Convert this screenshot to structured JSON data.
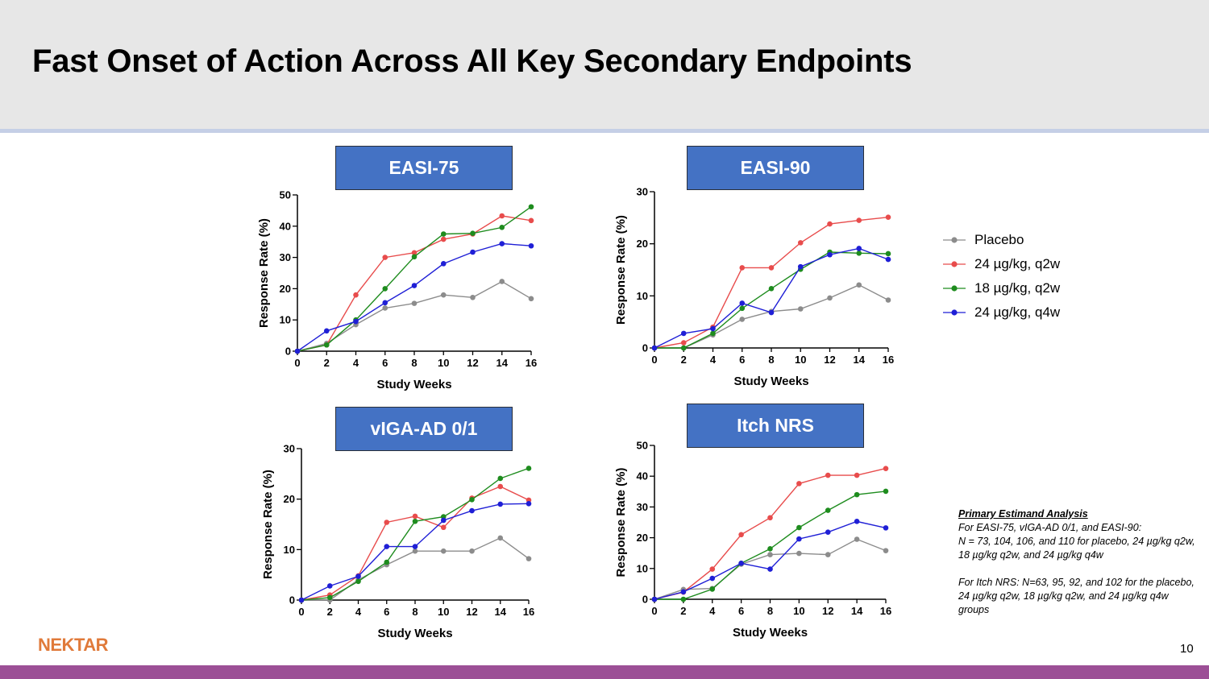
{
  "title": "Fast Onset of Action Across All Key Secondary Endpoints",
  "colors": {
    "placebo": "#8c8c8c",
    "q2w_24": "#e84c4c",
    "q2w_18": "#1e8c1e",
    "q4w_24": "#1f1fd6",
    "label_bg": "#4472c4",
    "footer": "#9c4f96",
    "logo": "#e07a3a"
  },
  "legend": [
    {
      "name": "Placebo",
      "color": "#8c8c8c"
    },
    {
      "name": "24 µg/kg, q2w",
      "color": "#e84c4c"
    },
    {
      "name": "18 µg/kg, q2w",
      "color": "#1e8c1e"
    },
    {
      "name": "24 µg/kg, q4w",
      "color": "#1f1fd6"
    }
  ],
  "chart_data": [
    {
      "type": "line",
      "title": "EASI-75",
      "xlabel": "Study Weeks",
      "ylabel": "Response Rate (%)",
      "xlim": [
        0,
        16
      ],
      "ylim": [
        0,
        50
      ],
      "xticks": [
        0,
        2,
        4,
        6,
        8,
        10,
        12,
        14,
        16
      ],
      "yticks": [
        0,
        10,
        20,
        30,
        40,
        50
      ],
      "x": [
        0,
        2,
        4,
        6,
        8,
        10,
        12,
        14,
        16
      ],
      "series": [
        {
          "name": "Placebo",
          "color": "#8c8c8c",
          "values": [
            0,
            2.5,
            8.5,
            13.8,
            15.3,
            18,
            17.2,
            22.3,
            16.8
          ]
        },
        {
          "name": "24 µg/kg, q2w",
          "color": "#e84c4c",
          "values": [
            0,
            2,
            18,
            30,
            31.5,
            35.8,
            37.5,
            43.3,
            41.8
          ]
        },
        {
          "name": "18 µg/kg, q2w",
          "color": "#1e8c1e",
          "values": [
            0,
            2,
            10,
            20,
            30.2,
            37.5,
            37.7,
            39.6,
            46.2
          ]
        },
        {
          "name": "24 µg/kg, q4w",
          "color": "#1f1fd6",
          "values": [
            0,
            6.5,
            9.5,
            15.5,
            21,
            28,
            31.7,
            34.4,
            33.7
          ]
        }
      ]
    },
    {
      "type": "line",
      "title": "EASI-90",
      "xlabel": "Study Weeks",
      "ylabel": "Response Rate (%)",
      "xlim": [
        0,
        16
      ],
      "ylim": [
        0,
        30
      ],
      "xticks": [
        0,
        2,
        4,
        6,
        8,
        10,
        12,
        14,
        16
      ],
      "yticks": [
        0,
        10,
        20,
        30
      ],
      "x": [
        0,
        2,
        4,
        6,
        8,
        10,
        12,
        14,
        16
      ],
      "series": [
        {
          "name": "Placebo",
          "color": "#8c8c8c",
          "values": [
            0,
            0,
            2.5,
            5.5,
            7,
            7.5,
            9.6,
            12.1,
            9.2
          ]
        },
        {
          "name": "24 µg/kg, q2w",
          "color": "#e84c4c",
          "values": [
            0,
            1,
            4,
            15.4,
            15.4,
            20.2,
            23.8,
            24.5,
            25.1
          ]
        },
        {
          "name": "18 µg/kg, q2w",
          "color": "#1e8c1e",
          "values": [
            0,
            0,
            2.8,
            7.6,
            11.4,
            15.1,
            18.4,
            18.2,
            18.1
          ]
        },
        {
          "name": "24 µg/kg, q4w",
          "color": "#1f1fd6",
          "values": [
            0,
            2.8,
            3.7,
            8.6,
            6.8,
            15.6,
            17.9,
            19.1,
            17
          ]
        }
      ]
    },
    {
      "type": "line",
      "title": "vIGA-AD 0/1",
      "xlabel": "Study Weeks",
      "ylabel": "Response Rate (%)",
      "xlim": [
        0,
        16
      ],
      "ylim": [
        0,
        30
      ],
      "xticks": [
        0,
        2,
        4,
        6,
        8,
        10,
        12,
        14,
        16
      ],
      "yticks": [
        0,
        10,
        20,
        30
      ],
      "x": [
        0,
        2,
        4,
        6,
        8,
        10,
        12,
        14,
        16
      ],
      "series": [
        {
          "name": "Placebo",
          "color": "#8c8c8c",
          "values": [
            0,
            0,
            4,
            7,
            9.7,
            9.7,
            9.7,
            12.3,
            8.2
          ]
        },
        {
          "name": "24 µg/kg, q2w",
          "color": "#e84c4c",
          "values": [
            0,
            1,
            4.8,
            15.4,
            16.6,
            14.4,
            20.2,
            22.5,
            19.8
          ]
        },
        {
          "name": "18 µg/kg, q2w",
          "color": "#1e8c1e",
          "values": [
            0,
            0.5,
            3.7,
            7.5,
            15.6,
            16.5,
            19.9,
            24.1,
            26.1
          ]
        },
        {
          "name": "24 µg/kg, q4w",
          "color": "#1f1fd6",
          "values": [
            0,
            2.8,
            4.7,
            10.6,
            10.6,
            15.8,
            17.7,
            19,
            19.1
          ]
        }
      ]
    },
    {
      "type": "line",
      "title": "Itch NRS",
      "xlabel": "Study Weeks",
      "ylabel": "Response Rate (%)",
      "xlim": [
        0,
        16
      ],
      "ylim": [
        0,
        50
      ],
      "xticks": [
        0,
        2,
        4,
        6,
        8,
        10,
        12,
        14,
        16
      ],
      "yticks": [
        0,
        10,
        20,
        30,
        40,
        50
      ],
      "x": [
        0,
        2,
        4,
        6,
        8,
        10,
        12,
        14,
        16
      ],
      "series": [
        {
          "name": "Placebo",
          "color": "#8c8c8c",
          "values": [
            0,
            3.2,
            3.5,
            11.4,
            14.5,
            14.9,
            14.5,
            19.5,
            15.8
          ]
        },
        {
          "name": "24 µg/kg, q2w",
          "color": "#e84c4c",
          "values": [
            0,
            2.3,
            9.8,
            21,
            26.5,
            37.6,
            40.3,
            40.3,
            42.5
          ]
        },
        {
          "name": "18 µg/kg, q2w",
          "color": "#1e8c1e",
          "values": [
            0,
            0,
            3.3,
            11.7,
            16.4,
            23.3,
            28.9,
            34,
            35.1
          ]
        },
        {
          "name": "24 µg/kg, q4w",
          "color": "#1f1fd6",
          "values": [
            0,
            2.4,
            6.8,
            11.7,
            9.8,
            19.6,
            21.8,
            25.3,
            23.2
          ]
        }
      ]
    }
  ],
  "notes": {
    "heading": "Primary Estimand Analysis",
    "line1": "For EASI-75, vIGA-AD 0/1, and EASI-90:",
    "line2": "N = 73, 104, 106, and 110 for placebo, 24 µg/kg q2w, 18 µg/kg q2w, and 24 µg/kg q4w",
    "line3": "For Itch NRS: N=63, 95, 92, and 102 for the placebo, 24 µg/kg q2w, 18 µg/kg q2w, and 24 µg/kg q4w groups"
  },
  "logo": "NEKTAR",
  "page_number": "10"
}
